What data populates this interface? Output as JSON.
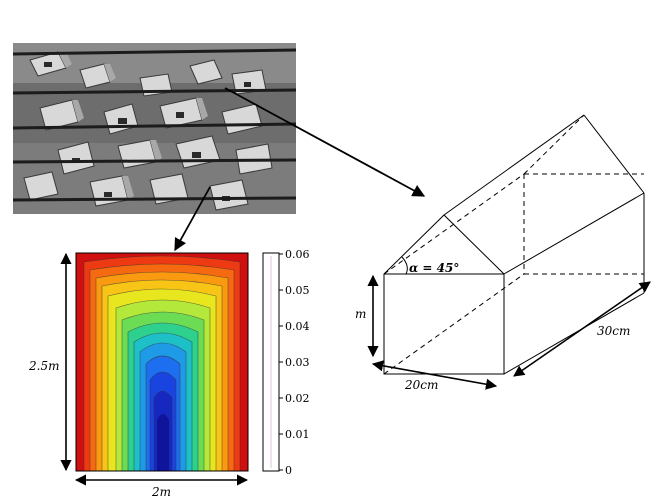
{
  "photo": {
    "description_icon": "photo-of-boxes-on-rack"
  },
  "heatmap": {
    "height_label": "2.5m",
    "width_label": "2m",
    "colorbar_ticks": [
      "0.06",
      "0.05",
      "0.04",
      "0.03",
      "0.02",
      "0.01",
      "0"
    ]
  },
  "box": {
    "angle_label": "α = 45°",
    "height_label": "m",
    "width_label": "20cm",
    "length_label": "30cm"
  },
  "colors": {
    "outline": "#000000",
    "photo_bg": "#6e6e6e"
  }
}
